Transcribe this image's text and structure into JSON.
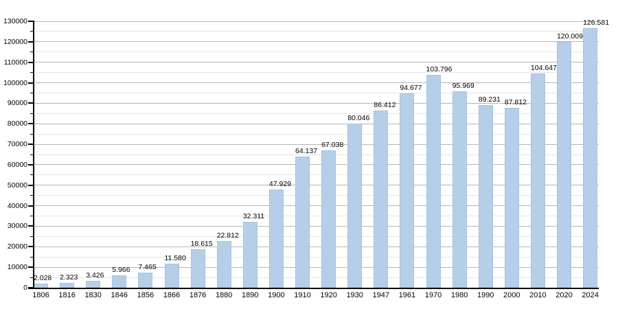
{
  "chart_data": {
    "type": "bar",
    "title": "",
    "xlabel": "",
    "ylabel": "",
    "categories": [
      "1806",
      "1816",
      "1830",
      "1846",
      "1856",
      "1866",
      "1876",
      "1880",
      "1890",
      "1900",
      "1910",
      "1920",
      "1930",
      "1947",
      "1961",
      "1970",
      "1980",
      "1990",
      "2000",
      "2010",
      "2020",
      "2024"
    ],
    "values": [
      2028,
      2323,
      3426,
      5966,
      7465,
      11580,
      18615,
      22812,
      32311,
      47929,
      64137,
      67038,
      80046,
      86412,
      94677,
      103796,
      95969,
      89231,
      87812,
      104647,
      120009,
      126581
    ],
    "value_labels": [
      "2.028",
      "2.323",
      "3.426",
      "5.966",
      "7.465",
      "11.580",
      "18.615",
      "22.812",
      "32.311",
      "47.929",
      "64.137",
      "67.038",
      "80.046",
      "86.412",
      "94.677",
      "103.796",
      "95.969",
      "89.231",
      "87.812",
      "104.647",
      "120.009",
      "126.581"
    ],
    "ylim": [
      0,
      130000
    ],
    "ytick_step": 10000,
    "yminor_step": 5000,
    "ytick_labels": [
      "0",
      "10000",
      "20000",
      "30000",
      "40000",
      "50000",
      "60000",
      "70000",
      "80000",
      "90000",
      "100000",
      "110000",
      "120000",
      "130000"
    ],
    "grid": true,
    "legend_position": "none",
    "colors": {
      "bar_fill": "#b6cfe9",
      "bar_border": "#a6c2de",
      "grid_major": "#b5b5b5",
      "grid_minor": "#e5e5e5",
      "axis": "#000000",
      "text": "#000000",
      "background": "#ffffff"
    }
  }
}
